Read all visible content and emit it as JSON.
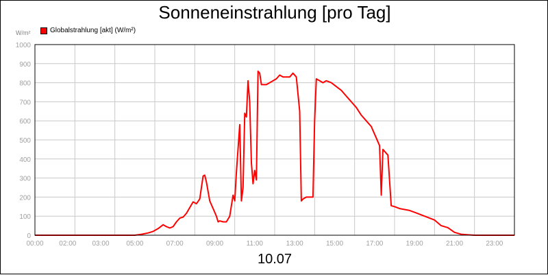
{
  "chart_data": {
    "type": "line",
    "title": "Sonneneinstrahlung [pro Tag]",
    "unit_label": "W/m²",
    "date_label": "10.07",
    "legend_position": "top-left",
    "grid": true,
    "series": [
      {
        "name": "Globalstrahlung [akt] (W/m²)",
        "color": "#ff0000",
        "x": [
          "00:00",
          "05:00",
          "05:20",
          "05:40",
          "05:55",
          "06:10",
          "06:25",
          "06:35",
          "06:45",
          "06:55",
          "07:05",
          "07:15",
          "07:25",
          "07:35",
          "07:45",
          "07:55",
          "08:05",
          "08:15",
          "08:25",
          "08:30",
          "08:35",
          "08:45",
          "08:55",
          "09:05",
          "09:10",
          "09:15",
          "09:25",
          "09:35",
          "09:45",
          "09:55",
          "10:00",
          "10:05",
          "10:15",
          "10:20",
          "10:25",
          "10:30",
          "10:35",
          "10:40",
          "10:45",
          "10:50",
          "10:55",
          "11:00",
          "11:05",
          "11:10",
          "11:15",
          "11:20",
          "11:25",
          "11:35",
          "11:45",
          "11:55",
          "12:05",
          "12:15",
          "12:25",
          "12:35",
          "12:45",
          "12:55",
          "13:05",
          "13:15",
          "13:20",
          "13:25",
          "13:35",
          "13:45",
          "13:55",
          "14:00",
          "14:05",
          "14:15",
          "14:25",
          "14:35",
          "14:50",
          "15:05",
          "15:20",
          "15:35",
          "15:50",
          "16:05",
          "16:20",
          "16:35",
          "16:50",
          "17:05",
          "17:15",
          "17:20",
          "17:25",
          "17:30",
          "17:40",
          "17:50",
          "18:00",
          "18:15",
          "18:30",
          "18:45",
          "19:00",
          "19:30",
          "20:00",
          "20:20",
          "20:40",
          "21:00",
          "21:20",
          "21:40",
          "22:00",
          "24:00"
        ],
        "values": [
          0,
          0,
          5,
          12,
          20,
          35,
          55,
          45,
          38,
          45,
          70,
          90,
          95,
          115,
          145,
          175,
          165,
          190,
          310,
          315,
          280,
          180,
          140,
          100,
          70,
          75,
          70,
          70,
          100,
          210,
          180,
          330,
          580,
          180,
          250,
          640,
          620,
          810,
          700,
          380,
          270,
          340,
          290,
          860,
          850,
          790,
          790,
          790,
          800,
          810,
          820,
          840,
          830,
          830,
          830,
          850,
          830,
          650,
          180,
          190,
          200,
          200,
          200,
          600,
          820,
          810,
          800,
          810,
          800,
          780,
          760,
          730,
          700,
          670,
          630,
          600,
          570,
          510,
          470,
          210,
          450,
          440,
          420,
          155,
          150,
          140,
          135,
          130,
          120,
          100,
          80,
          50,
          40,
          15,
          5,
          2,
          0,
          0
        ]
      }
    ],
    "xlim": [
      0,
      24
    ],
    "ylim": [
      0,
      1000
    ],
    "y_ticks": [
      0,
      100,
      200,
      300,
      400,
      500,
      600,
      700,
      800,
      900,
      1000
    ],
    "x_ticks": [
      {
        "h": 0,
        "label": "00:00"
      },
      {
        "h": 2,
        "label": "02:00"
      },
      {
        "h": 3,
        "label": "03:00"
      },
      {
        "h": 5,
        "label": "05:00"
      },
      {
        "h": 7,
        "label": "07:00"
      },
      {
        "h": 9,
        "label": "09:00"
      },
      {
        "h": 11,
        "label": "11:00"
      },
      {
        "h": 13,
        "label": "13:00"
      },
      {
        "h": 15,
        "label": "15:00"
      },
      {
        "h": 17,
        "label": "17:00"
      },
      {
        "h": 19,
        "label": "19:00"
      },
      {
        "h": 21,
        "label": "21:00"
      },
      {
        "h": 23,
        "label": "23:00"
      }
    ]
  }
}
